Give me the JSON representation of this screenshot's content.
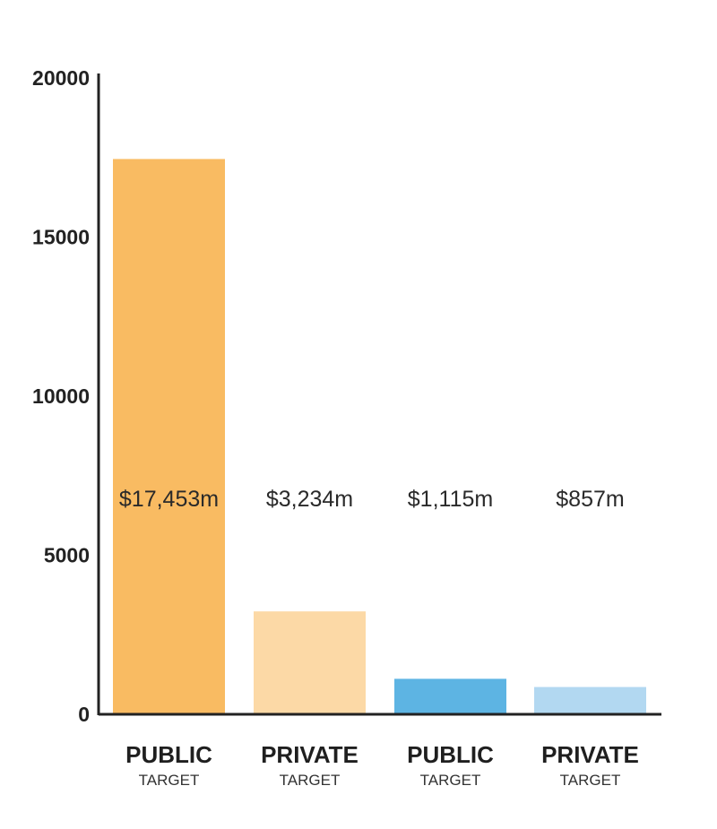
{
  "chart_data": {
    "type": "bar",
    "title": "",
    "xlabel": "",
    "ylabel": "",
    "ylim": [
      0,
      20000
    ],
    "y_ticks": [
      0,
      5000,
      10000,
      15000,
      20000
    ],
    "grid": false,
    "categories": [
      {
        "label": "PUBLIC",
        "sublabel": "TARGET"
      },
      {
        "label": "PRIVATE",
        "sublabel": "TARGET"
      },
      {
        "label": "PUBLIC",
        "sublabel": "TARGET"
      },
      {
        "label": "PRIVATE",
        "sublabel": "TARGET"
      }
    ],
    "values": [
      17453,
      3234,
      1115,
      857
    ],
    "value_labels": [
      "$17,453m",
      "$3,234m",
      "$1,115m",
      "$857m"
    ],
    "colors": [
      "#f9bb62",
      "#fcd9a6",
      "#5db4e3",
      "#b2d8f1"
    ],
    "axis_color": "#222222"
  }
}
